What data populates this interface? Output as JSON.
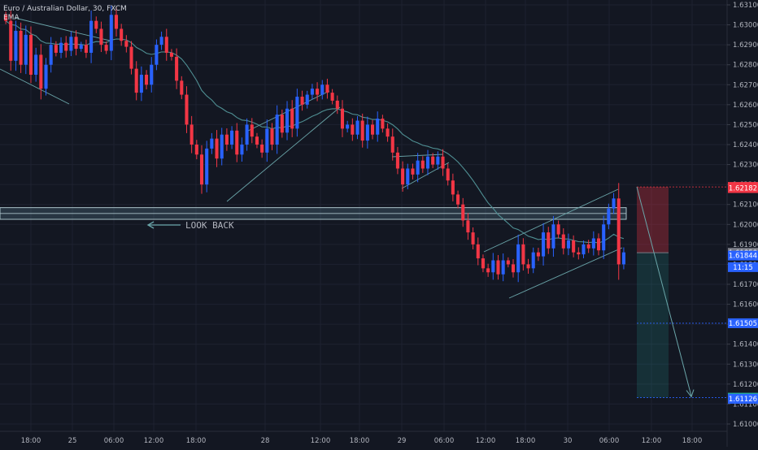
{
  "header": {
    "title": "Euro / Australian Dollar, 30, FXCM",
    "indicator": "EMA"
  },
  "annotation": {
    "look_back": "LOOK BACK"
  },
  "colors": {
    "background": "#131722",
    "grid": "#1e2230",
    "up": "#2962ff",
    "down": "#f23645",
    "ema": "#4f8f93",
    "pattern": "#6aa5a9",
    "zone": "#a9c1c8",
    "axis_text": "#b2b5be"
  },
  "chart_data": {
    "type": "candlestick",
    "symbol": "Euro / Australian Dollar",
    "interval": "30",
    "source": "FXCM",
    "indicators": [
      "EMA"
    ],
    "ylim": [
      1.6095,
      1.6315
    ],
    "y_ticks": [
      1.631,
      1.63,
      1.629,
      1.628,
      1.627,
      1.626,
      1.625,
      1.624,
      1.623,
      1.622,
      1.621,
      1.62,
      1.619,
      1.618,
      1.617,
      1.616,
      1.615,
      1.614,
      1.613,
      1.612,
      1.611,
      1.61
    ],
    "y_tick_labels": [
      "1.63100",
      "1.63000",
      "1.62900",
      "1.62800",
      "1.62700",
      "1.62600",
      "1.62500",
      "1.62400",
      "1.62300",
      "1.62200",
      "1.62100",
      "1.62000",
      "1.61900",
      "1.61800",
      "1.61700",
      "1.61600",
      "1.61500",
      "1.61400",
      "1.61300",
      "1.61200",
      "1.61100",
      "1.61000"
    ],
    "x_tick_labels": [
      "18:00",
      "25",
      "06:00",
      "12:00",
      "18:00",
      "28",
      "12:00",
      "18:00",
      "29",
      "06:00",
      "12:00",
      "18:00",
      "30",
      "06:00",
      "12:00",
      "18:00"
    ],
    "price_tags": [
      {
        "label": "1.62188",
        "value": 1.62188,
        "color": "#f23645"
      },
      {
        "label": "1.62182",
        "value": 1.62182,
        "color": "#f23645"
      },
      {
        "label": "1.61858",
        "value": 1.61858,
        "color": "#787b86"
      },
      {
        "label": "1.61844",
        "value": 1.61844,
        "color": "#2962ff"
      },
      {
        "label": "11:15",
        "value": 1.61786,
        "color": "#2962ff"
      },
      {
        "label": "1.61505",
        "value": 1.61505,
        "color": "#2962ff"
      },
      {
        "label": "1.61132",
        "value": 1.61132,
        "color": "#26a69a"
      },
      {
        "label": "1.61126",
        "value": 1.61126,
        "color": "#2962ff"
      }
    ],
    "support_zone": {
      "high": 1.6208,
      "low": 1.6205
    },
    "short_position": {
      "entry": 1.61858,
      "stop": 1.62188,
      "target": 1.61132
    },
    "ohlc_path": [
      1.6305,
      1.6302,
      1.6282,
      1.6297,
      1.628,
      1.6295,
      1.6275,
      1.6285,
      1.6268,
      1.628,
      1.629,
      1.6286,
      1.6291,
      1.6287,
      1.6294,
      1.6288,
      1.629,
      1.6286,
      1.6302,
      1.6298,
      1.629,
      1.6287,
      1.6305,
      1.6298,
      1.6292,
      1.6289,
      1.6278,
      1.6266,
      1.6275,
      1.627,
      1.628,
      1.629,
      1.6294,
      1.6286,
      1.6284,
      1.6272,
      1.6265,
      1.625,
      1.624,
      1.6235,
      1.622,
      1.6238,
      1.6243,
      1.6233,
      1.6245,
      1.624,
      1.6247,
      1.6235,
      1.624,
      1.625,
      1.6244,
      1.624,
      1.6236,
      1.6248,
      1.624,
      1.6255,
      1.6246,
      1.6258,
      1.6248,
      1.6264,
      1.626,
      1.6265,
      1.6268,
      1.6265,
      1.627,
      1.6266,
      1.6262,
      1.6258,
      1.6248,
      1.625,
      1.6245,
      1.6252,
      1.6242,
      1.625,
      1.6245,
      1.6253,
      1.6248,
      1.6244,
      1.6236,
      1.6228,
      1.622,
      1.6228,
      1.6225,
      1.6232,
      1.6228,
      1.6234,
      1.623,
      1.6234,
      1.6228,
      1.6222,
      1.6215,
      1.621,
      1.6202,
      1.6196,
      1.619,
      1.6183,
      1.6178,
      1.6176,
      1.6182,
      1.6175,
      1.6182,
      1.618,
      1.6176,
      1.619,
      1.618,
      1.6178,
      1.6186,
      1.6184,
      1.6196,
      1.6188,
      1.62,
      1.6195,
      1.6188,
      1.6192,
      1.6186,
      1.6185,
      1.619,
      1.6188,
      1.6193,
      1.6187,
      1.62,
      1.6208,
      1.6213,
      1.618,
      1.6186
    ]
  }
}
